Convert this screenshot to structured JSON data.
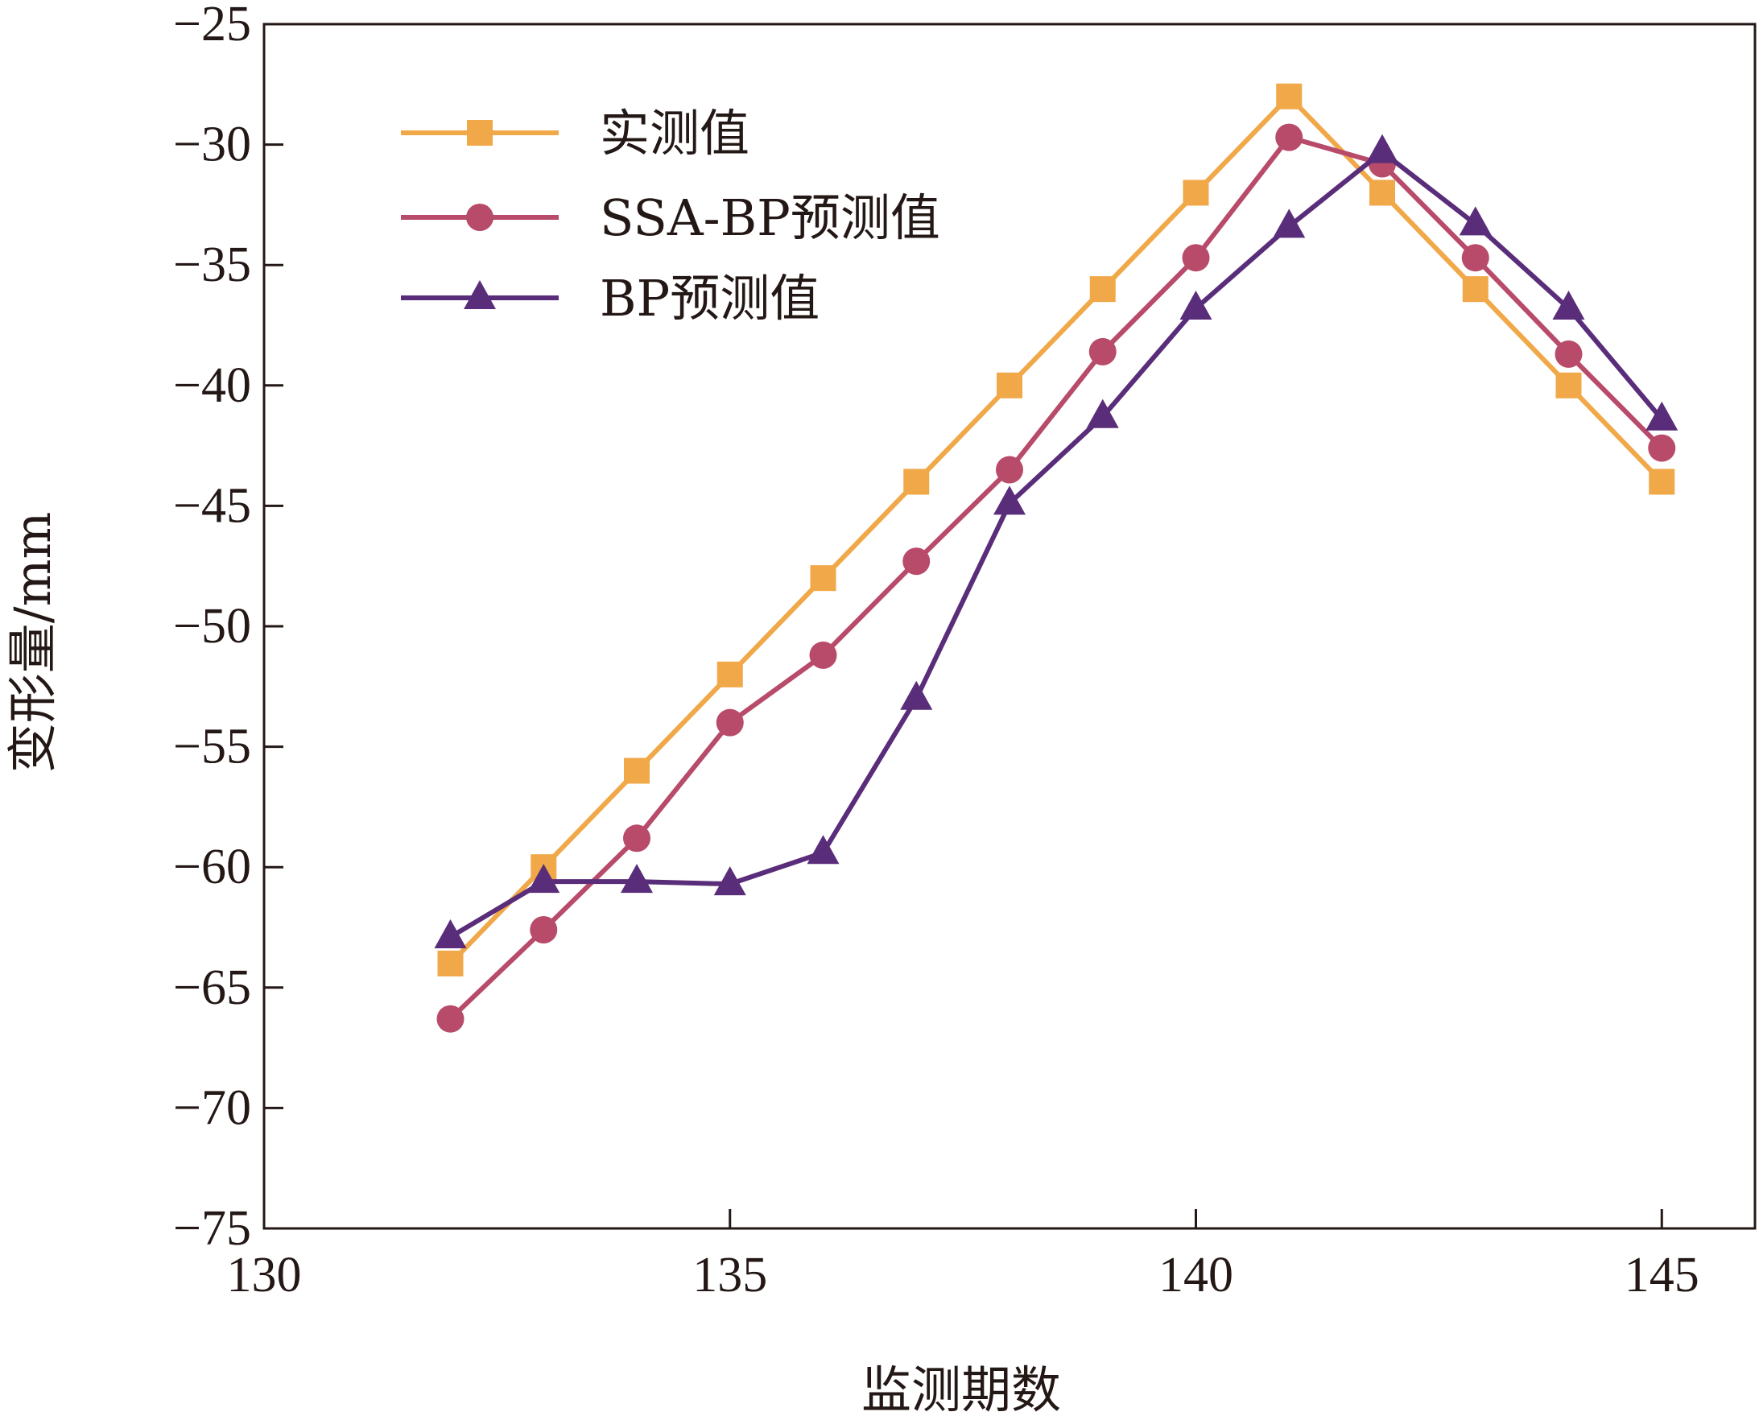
{
  "chart_data": {
    "type": "line",
    "title": "",
    "xlabel": "监测期数",
    "ylabel": "变形量/mm",
    "xlim": [
      130,
      146
    ],
    "ylim": [
      -75,
      -25
    ],
    "xticks": [
      130,
      135,
      140,
      145
    ],
    "yticks": [
      -25,
      -30,
      -35,
      -40,
      -45,
      -50,
      -55,
      -60,
      -65,
      -70,
      -75
    ],
    "grid": false,
    "legend_position": "top-left",
    "x": [
      132,
      133,
      134,
      135,
      136,
      137,
      138,
      139,
      140,
      141,
      142,
      143,
      144,
      145
    ],
    "series": [
      {
        "name": "实测值",
        "marker": "square",
        "color": "#F0A848",
        "values": [
          -64,
          -60,
          -56,
          -52,
          -48,
          -44,
          -40,
          -36,
          -32,
          -28,
          -32,
          -36,
          -40,
          -44
        ]
      },
      {
        "name": "SSA-BP预测值",
        "marker": "circle",
        "color": "#B84A6A",
        "values": [
          -66.3,
          -62.6,
          -58.8,
          -54,
          -51.2,
          -47.3,
          -43.5,
          -38.6,
          -34.7,
          -29.7,
          -30.8,
          -34.7,
          -38.7,
          -42.6
        ]
      },
      {
        "name": "BP预测值",
        "marker": "triangle",
        "color": "#5A2D7A",
        "values": [
          -62.9,
          -60.6,
          -60.6,
          -60.7,
          -59.4,
          -53,
          -44.9,
          -41.3,
          -36.8,
          -33.4,
          -30.3,
          -33.3,
          -36.8,
          -41.4
        ]
      }
    ]
  }
}
